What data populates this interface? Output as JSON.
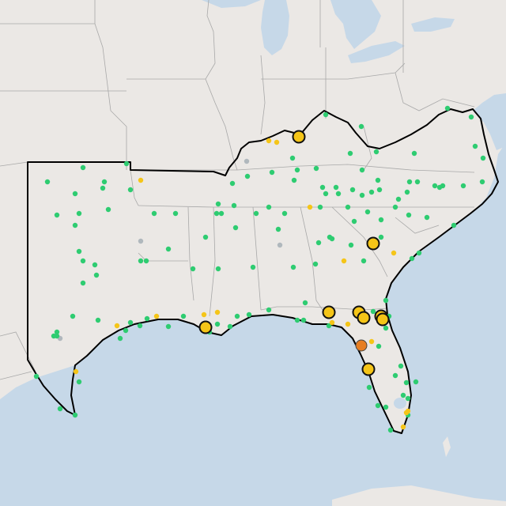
{
  "map": {
    "colors": {
      "land": "#ebe8e5",
      "water": "#c6d8e8",
      "state_border": "#a8a8a8",
      "region_outline": "#000000",
      "marker_green": "#2ecc71",
      "marker_yellow": "#f5c518",
      "marker_orange": "#e67e22",
      "marker_gray": "#b0b8bd"
    },
    "marker_legend_semantics": [
      "green",
      "yellow",
      "orange",
      "gray"
    ]
  }
}
